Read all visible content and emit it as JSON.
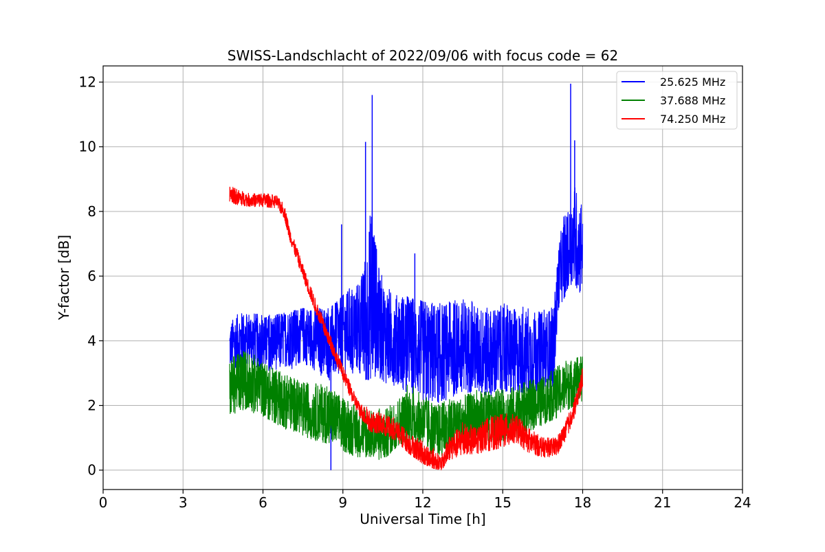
{
  "chart_data": {
    "type": "line",
    "title": "SWISS-Landschlacht of 2022/09/06 with focus code = 62",
    "xlabel": "Universal Time [h]",
    "ylabel": "Y-factor [dB]",
    "xlim": [
      0,
      24
    ],
    "ylim": [
      -0.6,
      12.5
    ],
    "xticks": [
      0,
      3,
      6,
      9,
      12,
      15,
      18,
      21,
      24
    ],
    "yticks": [
      0,
      2,
      4,
      6,
      8,
      10,
      12
    ],
    "grid": true,
    "legend_position": "top-right",
    "series": [
      {
        "name": "25.625 MHz",
        "color": "#0000ff",
        "x": [
          4.75,
          5.0,
          5.5,
          6.0,
          6.5,
          7.0,
          7.5,
          8.0,
          8.5,
          8.9,
          9.2,
          9.5,
          9.8,
          10.0,
          10.1,
          10.3,
          10.6,
          11.0,
          11.4,
          11.8,
          12.0,
          12.5,
          13.0,
          13.5,
          14.0,
          14.5,
          15.0,
          15.5,
          16.0,
          16.5,
          16.9,
          17.1,
          17.3,
          17.5,
          17.6,
          17.7,
          17.9,
          18.0
        ],
        "y": [
          3.8,
          4.0,
          4.1,
          3.9,
          4.0,
          4.1,
          4.2,
          4.1,
          3.9,
          4.2,
          4.3,
          4.4,
          4.5,
          5.0,
          5.5,
          4.6,
          4.2,
          4.0,
          3.9,
          3.8,
          3.7,
          3.6,
          3.7,
          3.8,
          3.7,
          3.6,
          3.7,
          3.6,
          3.6,
          3.6,
          3.7,
          6.0,
          6.6,
          6.8,
          7.0,
          7.2,
          6.9,
          7.2
        ],
        "range_low": [
          3.0,
          3.1,
          3.2,
          3.1,
          3.0,
          3.1,
          3.2,
          3.0,
          2.7,
          2.8,
          2.9,
          3.0,
          2.8,
          2.8,
          2.9,
          2.9,
          2.7,
          2.6,
          2.4,
          2.2,
          2.0,
          2.0,
          2.2,
          2.4,
          2.4,
          2.3,
          2.4,
          2.4,
          2.4,
          2.5,
          2.6,
          5.0,
          5.3,
          5.6,
          5.8,
          5.8,
          5.3,
          5.6
        ],
        "range_high": [
          4.5,
          4.8,
          4.9,
          4.8,
          4.8,
          4.9,
          5.0,
          5.0,
          5.0,
          5.3,
          5.6,
          5.7,
          6.3,
          8.5,
          9.0,
          6.5,
          5.8,
          5.5,
          5.4,
          5.3,
          5.2,
          5.2,
          5.2,
          5.3,
          5.2,
          5.1,
          5.2,
          5.1,
          5.1,
          5.1,
          5.2,
          7.0,
          7.9,
          8.0,
          8.6,
          9.0,
          8.3,
          8.4
        ],
        "peaks": [
          [
            8.55,
            0.0
          ],
          [
            8.95,
            7.6
          ],
          [
            9.85,
            10.15
          ],
          [
            10.1,
            11.6
          ],
          [
            11.7,
            6.7
          ],
          [
            17.55,
            11.95
          ],
          [
            17.7,
            10.2
          ]
        ]
      },
      {
        "name": "37.688 MHz",
        "color": "#008000",
        "x": [
          4.75,
          5.0,
          5.5,
          6.0,
          6.5,
          7.0,
          7.5,
          8.0,
          8.5,
          9.0,
          9.5,
          10.0,
          10.5,
          11.0,
          11.5,
          12.0,
          12.5,
          13.0,
          13.5,
          14.0,
          14.5,
          15.0,
          15.5,
          16.0,
          16.5,
          17.0,
          17.5,
          18.0
        ],
        "y": [
          2.5,
          2.7,
          2.8,
          2.5,
          2.3,
          2.1,
          1.9,
          1.8,
          1.7,
          1.4,
          1.2,
          1.1,
          1.0,
          1.4,
          1.7,
          1.5,
          1.2,
          1.3,
          1.5,
          1.6,
          1.6,
          1.7,
          1.8,
          2.0,
          2.1,
          2.4,
          2.6,
          2.9
        ],
        "range_low": [
          1.6,
          1.8,
          1.8,
          1.6,
          1.3,
          1.2,
          1.0,
          0.9,
          0.8,
          0.6,
          0.4,
          0.4,
          0.3,
          0.7,
          1.0,
          0.7,
          0.4,
          0.5,
          0.7,
          0.8,
          0.8,
          0.9,
          1.0,
          1.2,
          1.4,
          1.6,
          1.9,
          2.1
        ],
        "range_high": [
          3.4,
          3.7,
          3.7,
          3.3,
          3.1,
          2.9,
          2.7,
          2.7,
          2.6,
          2.3,
          2.0,
          1.9,
          1.9,
          2.3,
          2.7,
          2.4,
          2.1,
          2.2,
          2.3,
          2.5,
          2.5,
          2.5,
          2.6,
          2.8,
          2.9,
          3.2,
          3.5,
          3.5
        ]
      },
      {
        "name": "74.250 MHz",
        "color": "#ff0000",
        "x": [
          4.75,
          5.0,
          5.5,
          6.0,
          6.5,
          6.8,
          7.0,
          7.3,
          7.6,
          8.0,
          8.3,
          8.6,
          9.0,
          9.3,
          9.6,
          10.0,
          10.5,
          11.0,
          11.5,
          12.0,
          12.4,
          12.7,
          13.0,
          13.5,
          14.0,
          14.5,
          15.0,
          15.5,
          16.0,
          16.5,
          17.0,
          17.3,
          17.6,
          17.8,
          18.0
        ],
        "y": [
          8.55,
          8.45,
          8.35,
          8.35,
          8.3,
          8.0,
          7.3,
          6.6,
          5.9,
          5.0,
          4.4,
          3.8,
          3.0,
          2.4,
          1.9,
          1.5,
          1.4,
          1.2,
          0.8,
          0.5,
          0.3,
          0.2,
          0.7,
          0.9,
          0.9,
          1.1,
          1.2,
          1.3,
          0.9,
          0.7,
          0.7,
          1.1,
          1.7,
          2.2,
          2.9
        ],
        "range_low": [
          8.3,
          8.2,
          8.15,
          8.15,
          8.1,
          7.8,
          7.1,
          6.4,
          5.7,
          4.8,
          4.2,
          3.6,
          2.8,
          2.2,
          1.7,
          1.2,
          1.1,
          0.9,
          0.5,
          0.2,
          0.05,
          0.0,
          0.3,
          0.5,
          0.5,
          0.6,
          0.7,
          0.8,
          0.5,
          0.4,
          0.4,
          0.8,
          1.4,
          1.9,
          2.6
        ],
        "range_high": [
          8.8,
          8.7,
          8.55,
          8.6,
          8.5,
          8.25,
          7.55,
          6.85,
          6.15,
          5.25,
          4.65,
          4.05,
          3.25,
          2.65,
          2.15,
          1.9,
          1.8,
          1.6,
          1.2,
          1.0,
          0.7,
          0.5,
          1.1,
          1.5,
          1.4,
          1.7,
          1.8,
          1.7,
          1.3,
          1.0,
          1.0,
          1.4,
          2.0,
          2.5,
          3.2
        ]
      }
    ]
  }
}
